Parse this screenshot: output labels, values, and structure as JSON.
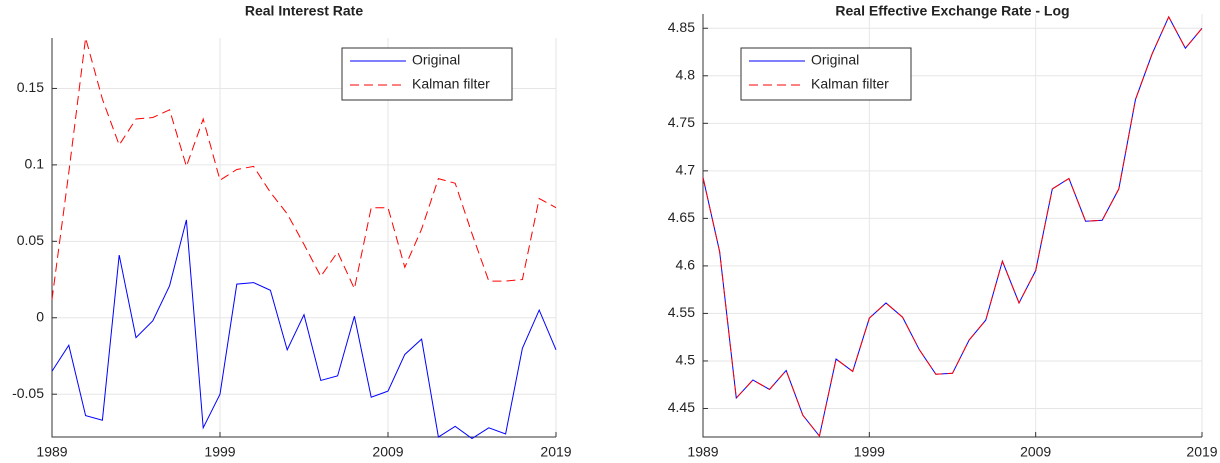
{
  "chart_data": [
    {
      "type": "line",
      "title": "Real Interest Rate",
      "x": [
        1989,
        1990,
        1991,
        1992,
        1993,
        1994,
        1995,
        1996,
        1997,
        1998,
        1999,
        2000,
        2001,
        2002,
        2003,
        2004,
        2005,
        2006,
        2007,
        2008,
        2009,
        2010,
        2011,
        2012,
        2013,
        2014,
        2015,
        2016,
        2017,
        2018,
        2019
      ],
      "xlim": [
        1989,
        2019
      ],
      "xticks": [
        1989,
        1999,
        2009,
        2019
      ],
      "ylim": [
        -0.078,
        0.183
      ],
      "yticks": [
        -0.05,
        0,
        0.05,
        0.1,
        0.15
      ],
      "grid": true,
      "legend": "upper right",
      "series": [
        {
          "name": "Original",
          "color": "#0000ff",
          "style": "solid",
          "values": [
            -0.035,
            -0.018,
            -0.064,
            -0.067,
            0.041,
            -0.013,
            -0.002,
            0.021,
            0.064,
            -0.072,
            -0.05,
            0.022,
            0.023,
            0.018,
            -0.021,
            0.002,
            -0.041,
            -0.038,
            0.001,
            -0.052,
            -0.048,
            -0.024,
            -0.014,
            -0.078,
            -0.071,
            -0.079,
            -0.072,
            -0.076,
            -0.02,
            0.005,
            -0.021
          ]
        },
        {
          "name": "Kalman filter",
          "color": "#ff0000",
          "style": "dashed",
          "values": [
            0.012,
            0.095,
            0.183,
            0.143,
            0.113,
            0.13,
            0.131,
            0.136,
            0.099,
            0.13,
            0.09,
            0.097,
            0.099,
            0.082,
            0.068,
            0.048,
            0.027,
            0.043,
            0.019,
            0.072,
            0.072,
            0.033,
            0.058,
            0.091,
            0.088,
            0.055,
            0.024,
            0.024,
            0.025,
            0.078,
            0.072
          ]
        }
      ]
    },
    {
      "type": "line",
      "title": "Real Effective Exchange Rate - Log",
      "x": [
        1989,
        1990,
        1991,
        1992,
        1993,
        1994,
        1995,
        1996,
        1997,
        1998,
        1999,
        2000,
        2001,
        2002,
        2003,
        2004,
        2005,
        2006,
        2007,
        2008,
        2009,
        2010,
        2011,
        2012,
        2013,
        2014,
        2015,
        2016,
        2017,
        2018,
        2019
      ],
      "xlim": [
        1989,
        2019
      ],
      "xticks": [
        1989,
        1999,
        2009,
        2019
      ],
      "ylim": [
        4.42,
        4.865
      ],
      "yticks": [
        4.45,
        4.5,
        4.55,
        4.6,
        4.65,
        4.7,
        4.75,
        4.8,
        4.85
      ],
      "grid": true,
      "legend": "upper left",
      "series": [
        {
          "name": "Original",
          "color": "#0000ff",
          "style": "solid",
          "values": [
            4.693,
            4.615,
            4.461,
            4.48,
            4.47,
            4.49,
            4.443,
            4.421,
            4.502,
            4.489,
            4.545,
            4.561,
            4.546,
            4.512,
            4.486,
            4.487,
            4.522,
            4.543,
            4.605,
            4.561,
            4.595,
            4.681,
            4.692,
            4.647,
            4.648,
            4.681,
            4.775,
            4.823,
            4.862,
            4.829,
            4.85
          ]
        },
        {
          "name": "Kalman filter",
          "color": "#ff0000",
          "style": "dashed",
          "values": [
            4.693,
            4.615,
            4.461,
            4.48,
            4.47,
            4.49,
            4.443,
            4.421,
            4.502,
            4.489,
            4.545,
            4.561,
            4.546,
            4.512,
            4.486,
            4.487,
            4.522,
            4.543,
            4.605,
            4.561,
            4.595,
            4.681,
            4.692,
            4.647,
            4.648,
            4.681,
            4.775,
            4.823,
            4.862,
            4.829,
            4.85
          ]
        }
      ]
    }
  ]
}
